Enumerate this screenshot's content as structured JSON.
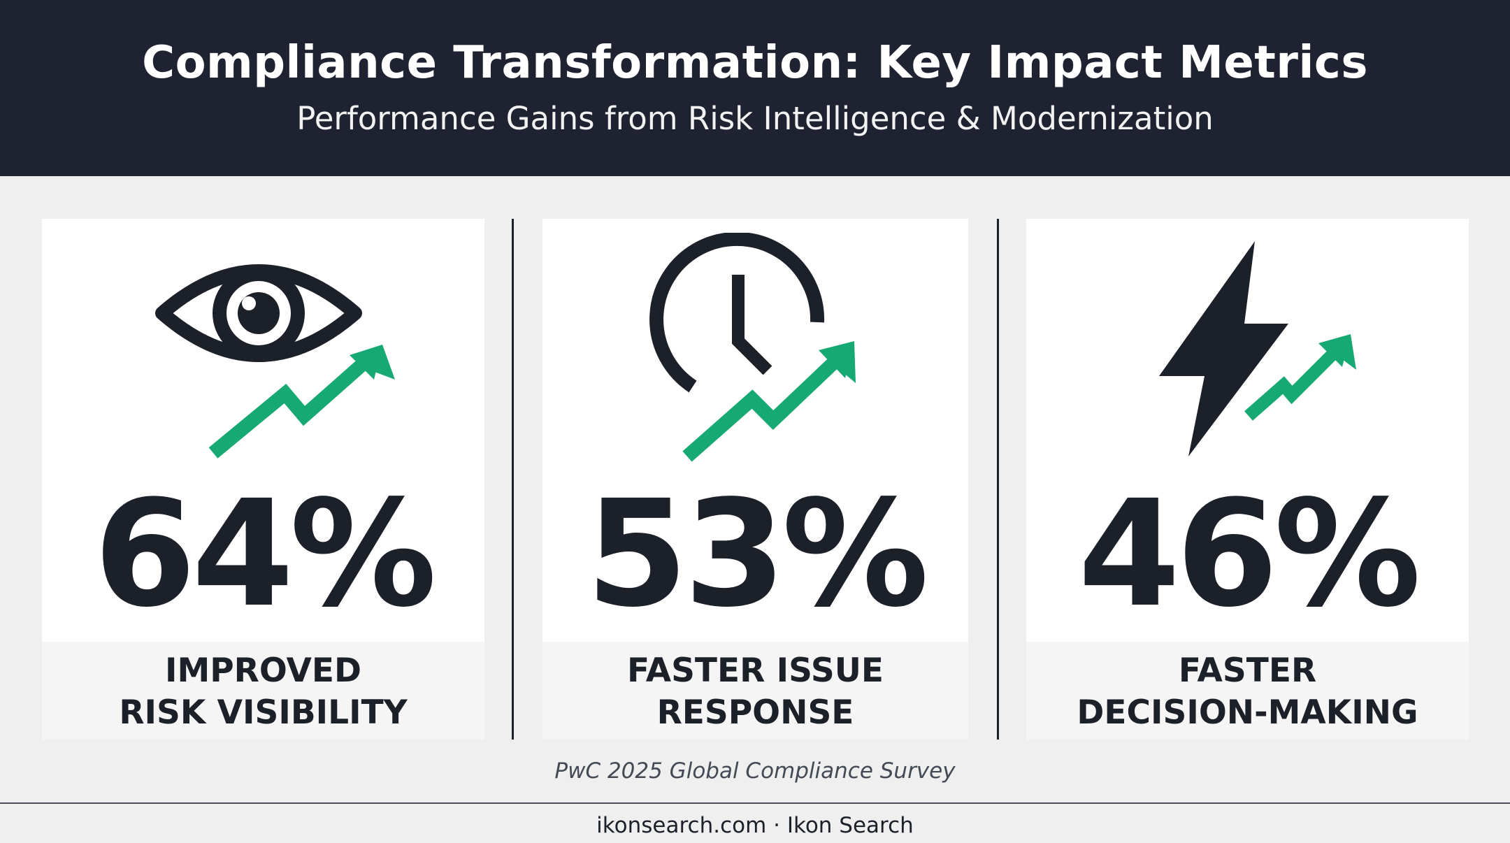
{
  "header": {
    "title": "Compliance Transformation: Key Impact Metrics",
    "subtitle": "Performance Gains from Risk Intelligence & Modernization"
  },
  "metrics": [
    {
      "value": "64%",
      "label_line1": "IMPROVED",
      "label_line2": "RISK VISIBILITY",
      "icon": "eye-icon"
    },
    {
      "value": "53%",
      "label_line1": "FASTER ISSUE",
      "label_line2": "RESPONSE",
      "icon": "clock-icon"
    },
    {
      "value": "46%",
      "label_line1": "FASTER",
      "label_line2": "DECISION-MAKING",
      "icon": "lightning-bolt-icon"
    }
  ],
  "source": "PwC 2025 Global Compliance Survey",
  "footer": "ikonsearch.com · Ikon Search",
  "colors": {
    "header_bg": "#1f2331",
    "text_dark": "#1c2029",
    "accent_green": "#17a974",
    "page_bg": "#efefef"
  }
}
